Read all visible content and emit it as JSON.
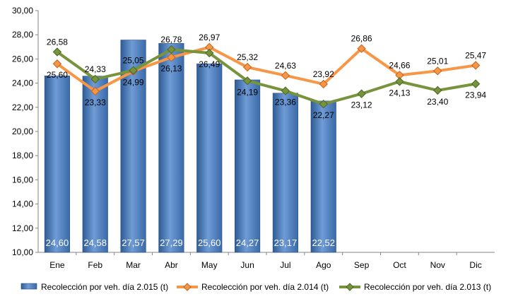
{
  "chart_data": {
    "type": "bar+line",
    "categories": [
      "Ene",
      "Feb",
      "Mar",
      "Abr",
      "May",
      "Jun",
      "Jul",
      "Ago",
      "Sep",
      "Oct",
      "Nov",
      "Dic"
    ],
    "y_ticks": [
      "10,00",
      "12,00",
      "14,00",
      "16,00",
      "18,00",
      "20,00",
      "22,00",
      "24,00",
      "26,00",
      "28,00",
      "30,00"
    ],
    "ylim": [
      10,
      30
    ],
    "grid": false,
    "legend_position": "bottom",
    "series": [
      {
        "name": "Recolección por veh. día 2.015 (t)",
        "kind": "bar",
        "color": "#4f81bd",
        "values": [
          24.6,
          24.58,
          27.57,
          27.29,
          25.6,
          24.27,
          23.17,
          22.52,
          null,
          null,
          null,
          null
        ],
        "labels": [
          "24,60",
          "24,58",
          "27,57",
          "27,29",
          "25,60",
          "24,27",
          "23,17",
          "22,52",
          "",
          "",
          "",
          ""
        ]
      },
      {
        "name": "Recolección por veh. día 2.014 (t)",
        "kind": "line",
        "color": "#f79646",
        "values": [
          25.6,
          23.33,
          24.99,
          26.13,
          26.97,
          25.32,
          24.63,
          23.92,
          26.86,
          24.66,
          25.01,
          25.47
        ],
        "labels": [
          "25,60",
          "23,33",
          "24,99",
          "26,13",
          "26,97",
          "25,32",
          "24,63",
          "23,92",
          "26,86",
          "24,66",
          "25,01",
          "25,47"
        ]
      },
      {
        "name": "Recolección por veh. día 2.013 (t)",
        "kind": "line",
        "color": "#77933c",
        "values": [
          26.58,
          24.33,
          25.05,
          26.78,
          26.49,
          24.19,
          23.36,
          22.27,
          23.12,
          24.13,
          23.4,
          23.94
        ],
        "labels": [
          "26,58",
          "24,33",
          "25,05",
          "26,78",
          "26,49",
          "24,19",
          "23,36",
          "22,27",
          "23,12",
          "24,13",
          "23,40",
          "23,94"
        ]
      }
    ]
  }
}
